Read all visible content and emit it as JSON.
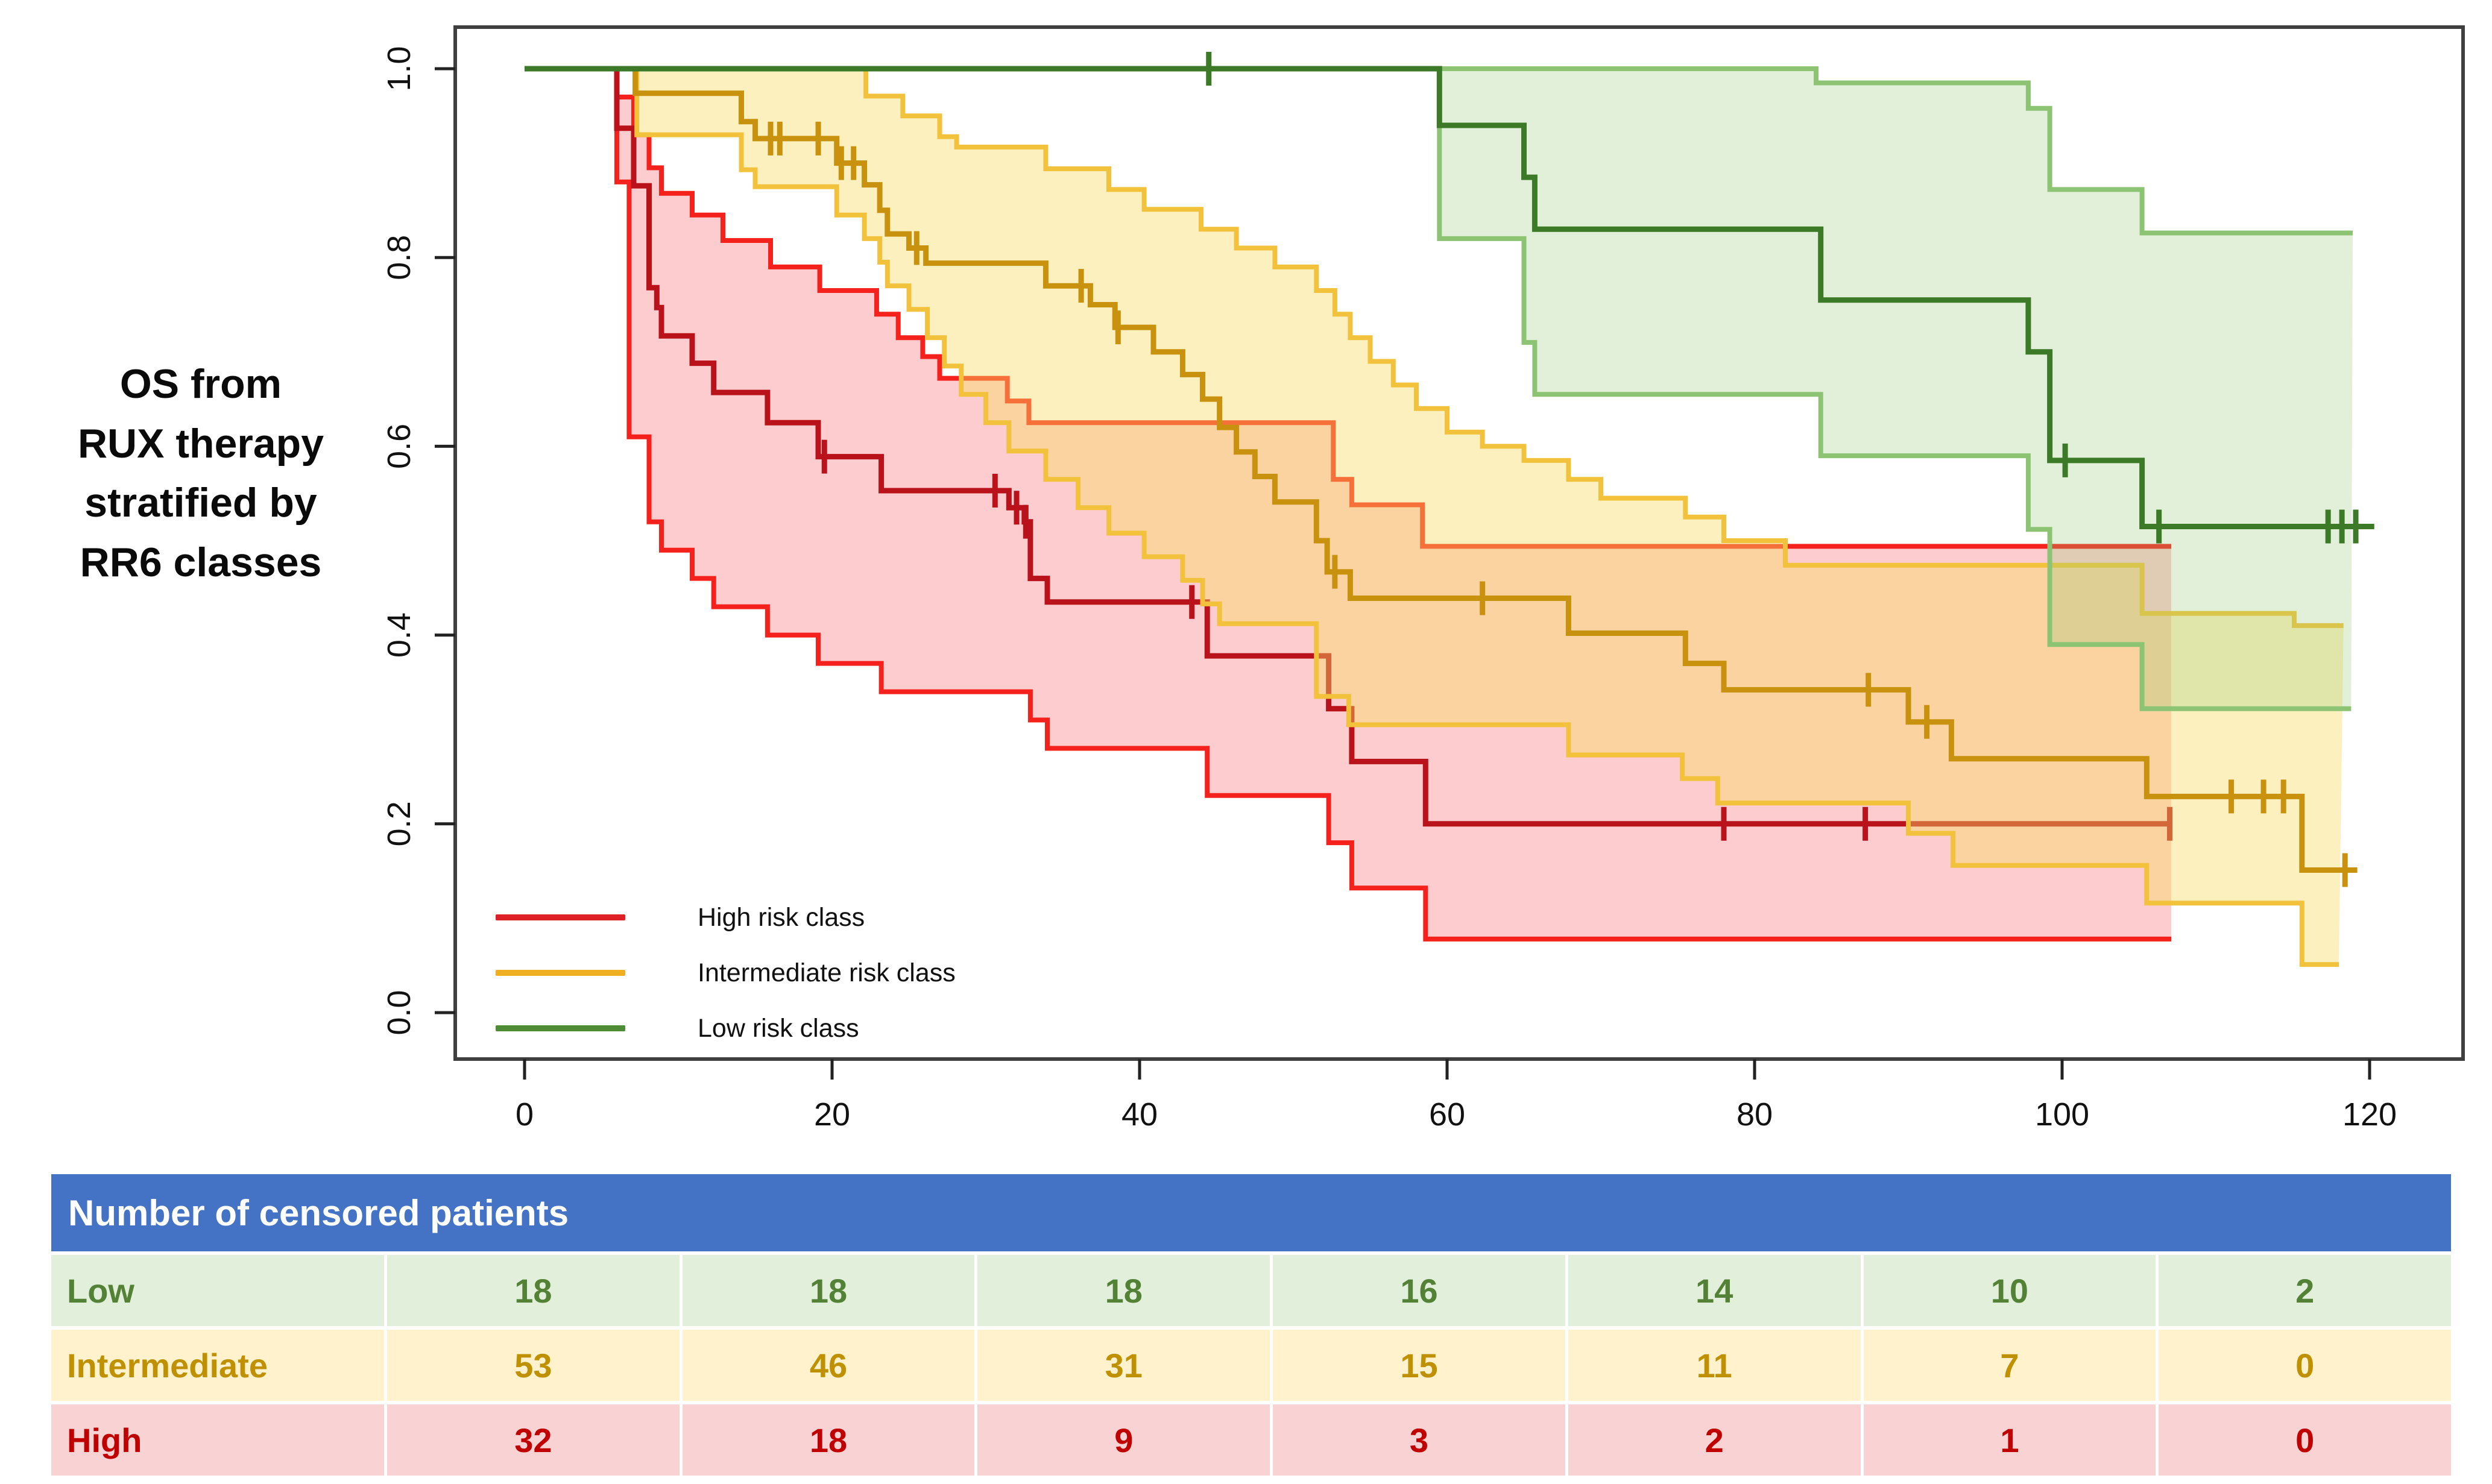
{
  "title": {
    "lines": [
      "OS from",
      "RUX therapy",
      "stratified by",
      "RR6 classes"
    ]
  },
  "legend": [
    {
      "label": "High risk class",
      "color": "#de2126"
    },
    {
      "label": "Intermediate risk class",
      "color": "#eeb021"
    },
    {
      "label": "Low risk class",
      "color": "#4e8c36"
    }
  ],
  "chart_data": {
    "type": "line",
    "subtype": "kaplan_meier_survival_with_ci",
    "xlabel": "",
    "ylabel": "",
    "x_ticks": [
      0,
      20,
      40,
      60,
      80,
      100,
      120
    ],
    "y_ticks": [
      "0.0",
      "0.2",
      "0.4",
      "0.6",
      "0.8",
      "1.0"
    ],
    "x_range": [
      0,
      126
    ],
    "y_range": [
      0,
      1.04
    ],
    "series": [
      {
        "name": "High risk class",
        "color": "#b9121b",
        "ci_color": "#f4211c",
        "fill": "rgba(246,120,125,0.38)",
        "steps": [
          [
            0,
            1.0
          ],
          [
            6,
            0.937
          ],
          [
            7.1,
            0.876
          ],
          [
            8.1,
            0.768
          ],
          [
            8.6,
            0.747
          ],
          [
            8.9,
            0.717
          ],
          [
            10.9,
            0.688
          ],
          [
            12.3,
            0.657
          ],
          [
            15.8,
            0.625
          ],
          [
            19.1,
            0.589
          ],
          [
            23.2,
            0.553
          ],
          [
            31.5,
            0.535
          ],
          [
            32.5,
            0.52
          ],
          [
            32.9,
            0.46
          ],
          [
            34,
            0.435
          ],
          [
            44.4,
            0.378
          ],
          [
            52.3,
            0.322
          ],
          [
            53.8,
            0.266
          ],
          [
            58.6,
            0.2
          ],
          [
            107.1,
            0.2
          ]
        ],
        "censors": [
          [
            19.5,
            0.589
          ],
          [
            30.6,
            0.553
          ],
          [
            32.0,
            0.535
          ],
          [
            32.6,
            0.52
          ],
          [
            43.4,
            0.435
          ],
          [
            78.0,
            0.2
          ],
          [
            87.2,
            0.2
          ],
          [
            107.0,
            0.2
          ]
        ],
        "upper": [
          [
            0,
            1.0
          ],
          [
            6,
            0.97
          ],
          [
            7.1,
            0.93
          ],
          [
            8.1,
            0.895
          ],
          [
            8.9,
            0.868
          ],
          [
            10.9,
            0.845
          ],
          [
            12.9,
            0.818
          ],
          [
            16,
            0.79
          ],
          [
            19.2,
            0.765
          ],
          [
            22.9,
            0.74
          ],
          [
            24.3,
            0.715
          ],
          [
            25.9,
            0.695
          ],
          [
            27,
            0.672
          ],
          [
            31.4,
            0.648
          ],
          [
            32.8,
            0.625
          ],
          [
            52.6,
            0.565
          ],
          [
            53.8,
            0.538
          ],
          [
            58.4,
            0.494
          ],
          [
            107.1,
            0.494
          ]
        ],
        "lower": [
          [
            0,
            1.0
          ],
          [
            6,
            0.88
          ],
          [
            6.8,
            0.61
          ],
          [
            8.1,
            0.52
          ],
          [
            8.9,
            0.49
          ],
          [
            10.9,
            0.46
          ],
          [
            12.3,
            0.43
          ],
          [
            15.8,
            0.4
          ],
          [
            19.1,
            0.37
          ],
          [
            23.2,
            0.34
          ],
          [
            32.9,
            0.31
          ],
          [
            34,
            0.28
          ],
          [
            44.4,
            0.23
          ],
          [
            52.3,
            0.18
          ],
          [
            53.8,
            0.132
          ],
          [
            58.6,
            0.078
          ],
          [
            107.1,
            0.078
          ]
        ]
      },
      {
        "name": "Intermediate risk class",
        "color": "#c8920e",
        "ci_color": "#f3c23c",
        "fill": "rgba(248,222,100,0.42)",
        "steps": [
          [
            0,
            1.0
          ],
          [
            7.2,
            0.974
          ],
          [
            14.1,
            0.944
          ],
          [
            15,
            0.926
          ],
          [
            20.3,
            0.9
          ],
          [
            22.1,
            0.877
          ],
          [
            23.1,
            0.85
          ],
          [
            23.6,
            0.825
          ],
          [
            25,
            0.81
          ],
          [
            26.1,
            0.794
          ],
          [
            33.9,
            0.77
          ],
          [
            36.8,
            0.75
          ],
          [
            38.4,
            0.726
          ],
          [
            40.9,
            0.7
          ],
          [
            42.8,
            0.676
          ],
          [
            44.1,
            0.65
          ],
          [
            45.2,
            0.62
          ],
          [
            46.3,
            0.594
          ],
          [
            47.5,
            0.568
          ],
          [
            48.8,
            0.541
          ],
          [
            51.5,
            0.5
          ],
          [
            52.2,
            0.467
          ],
          [
            53.7,
            0.439
          ],
          [
            67.9,
            0.402
          ],
          [
            75.5,
            0.37
          ],
          [
            78,
            0.342
          ],
          [
            90,
            0.308
          ],
          [
            92.8,
            0.269
          ],
          [
            105.5,
            0.229
          ],
          [
            115.6,
            0.151
          ],
          [
            119.2,
            0.151
          ]
        ],
        "censors": [
          [
            16,
            0.926
          ],
          [
            16.6,
            0.926
          ],
          [
            19.1,
            0.926
          ],
          [
            20.6,
            0.9
          ],
          [
            21.4,
            0.9
          ],
          [
            25.5,
            0.81
          ],
          [
            36.2,
            0.77
          ],
          [
            38.6,
            0.726
          ],
          [
            52.7,
            0.467
          ],
          [
            62.3,
            0.439
          ],
          [
            87.4,
            0.342
          ],
          [
            91.2,
            0.308
          ],
          [
            111,
            0.229
          ],
          [
            113.1,
            0.229
          ],
          [
            114.4,
            0.229
          ],
          [
            118.4,
            0.151
          ]
        ],
        "upper": [
          [
            0,
            1.0
          ],
          [
            22.2,
            0.971
          ],
          [
            24.6,
            0.95
          ],
          [
            27,
            0.928
          ],
          [
            28.1,
            0.917
          ],
          [
            33.9,
            0.894
          ],
          [
            38,
            0.872
          ],
          [
            40.3,
            0.851
          ],
          [
            44,
            0.83
          ],
          [
            46.3,
            0.81
          ],
          [
            48.8,
            0.79
          ],
          [
            51.5,
            0.765
          ],
          [
            52.7,
            0.74
          ],
          [
            53.7,
            0.715
          ],
          [
            55,
            0.69
          ],
          [
            56.5,
            0.665
          ],
          [
            58,
            0.64
          ],
          [
            60,
            0.615
          ],
          [
            62.3,
            0.6
          ],
          [
            65,
            0.585
          ],
          [
            67.9,
            0.565
          ],
          [
            70,
            0.545
          ],
          [
            75.5,
            0.525
          ],
          [
            78,
            0.5
          ],
          [
            82,
            0.474
          ],
          [
            105.2,
            0.423
          ],
          [
            115.1,
            0.41
          ],
          [
            118.3,
            0.41
          ]
        ],
        "lower": [
          [
            0,
            1.0
          ],
          [
            7.3,
            0.93
          ],
          [
            14.1,
            0.893
          ],
          [
            15,
            0.875
          ],
          [
            20.3,
            0.845
          ],
          [
            22.1,
            0.82
          ],
          [
            23.1,
            0.795
          ],
          [
            23.6,
            0.77
          ],
          [
            25,
            0.745
          ],
          [
            26.2,
            0.715
          ],
          [
            27.3,
            0.685
          ],
          [
            28.4,
            0.655
          ],
          [
            30,
            0.625
          ],
          [
            31.5,
            0.595
          ],
          [
            33.9,
            0.565
          ],
          [
            36,
            0.535
          ],
          [
            38,
            0.508
          ],
          [
            40.3,
            0.483
          ],
          [
            42.8,
            0.458
          ],
          [
            44.1,
            0.433
          ],
          [
            45.2,
            0.412
          ],
          [
            51.5,
            0.335
          ],
          [
            53.6,
            0.305
          ],
          [
            67.9,
            0.273
          ],
          [
            75.3,
            0.248
          ],
          [
            77.6,
            0.222
          ],
          [
            90,
            0.19
          ],
          [
            92.9,
            0.156
          ],
          [
            105.5,
            0.116
          ],
          [
            115.6,
            0.051
          ],
          [
            118,
            0.051
          ]
        ]
      },
      {
        "name": "Low risk class",
        "color": "#3c7a28",
        "ci_color": "#8cc474",
        "fill": "rgba(150,200,120,0.28)",
        "steps": [
          [
            0,
            1.0
          ],
          [
            59.5,
            0.94
          ],
          [
            65,
            0.885
          ],
          [
            65.7,
            0.83
          ],
          [
            84.3,
            0.755
          ],
          [
            97.8,
            0.7
          ],
          [
            99.2,
            0.585
          ],
          [
            105.2,
            0.515
          ],
          [
            120.3,
            0.515
          ]
        ],
        "censors": [
          [
            44.5,
            1.0
          ],
          [
            100.2,
            0.585
          ],
          [
            106.3,
            0.515
          ],
          [
            117.3,
            0.515
          ],
          [
            118.2,
            0.515
          ],
          [
            119.1,
            0.515
          ]
        ],
        "upper": [
          [
            0,
            1.0
          ],
          [
            84,
            0.985
          ],
          [
            97.8,
            0.958
          ],
          [
            99.2,
            0.872
          ],
          [
            105.2,
            0.826
          ],
          [
            118.9,
            0.826
          ]
        ],
        "lower": [
          [
            0,
            1.0
          ],
          [
            59.5,
            0.82
          ],
          [
            65,
            0.71
          ],
          [
            65.7,
            0.655
          ],
          [
            84.3,
            0.59
          ],
          [
            97.8,
            0.512
          ],
          [
            99.2,
            0.39
          ],
          [
            105.2,
            0.322
          ],
          [
            118.8,
            0.322
          ]
        ]
      }
    ]
  },
  "table": {
    "header": "Number of censored patients",
    "rows": [
      {
        "label": "Low",
        "values": [
          "18",
          "18",
          "18",
          "16",
          "14",
          "10",
          "2"
        ]
      },
      {
        "label": "Intermediate",
        "values": [
          "53",
          "46",
          "31",
          "15",
          "11",
          "7",
          "0"
        ]
      },
      {
        "label": "High",
        "values": [
          "32",
          "18",
          "9",
          "3",
          "2",
          "1",
          "0"
        ]
      }
    ]
  }
}
